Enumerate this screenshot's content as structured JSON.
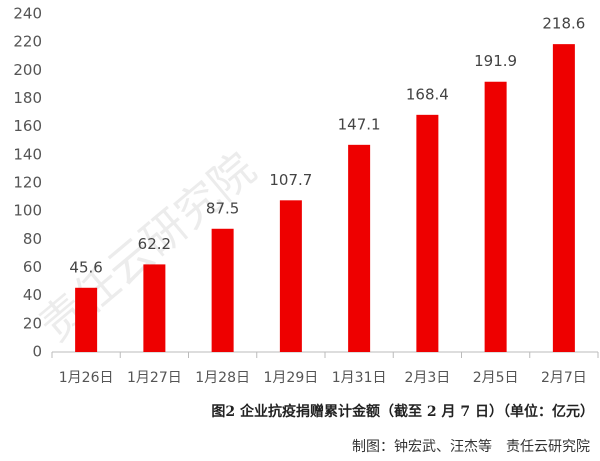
{
  "chart_data": {
    "type": "bar",
    "title": "图2 企业抗疫捐赠累计金额（截至 2 月 7 日）（单位：亿元）",
    "credit": "制图：钟宏武、汪杰等　责任云研究院",
    "watermark": "责任云研究院",
    "categories": [
      "1月26日",
      "1月27日",
      "1月28日",
      "1月29日",
      "1月31日",
      "2月3日",
      "2月5日",
      "2月7日"
    ],
    "values": [
      45.6,
      62.2,
      87.5,
      107.7,
      147.1,
      168.4,
      191.9,
      218.6
    ],
    "color": "#ee0000",
    "ylim": [
      0,
      240
    ],
    "yticks": [
      0,
      20,
      40,
      60,
      80,
      100,
      120,
      140,
      160,
      180,
      200,
      220,
      240
    ],
    "grid": false
  }
}
